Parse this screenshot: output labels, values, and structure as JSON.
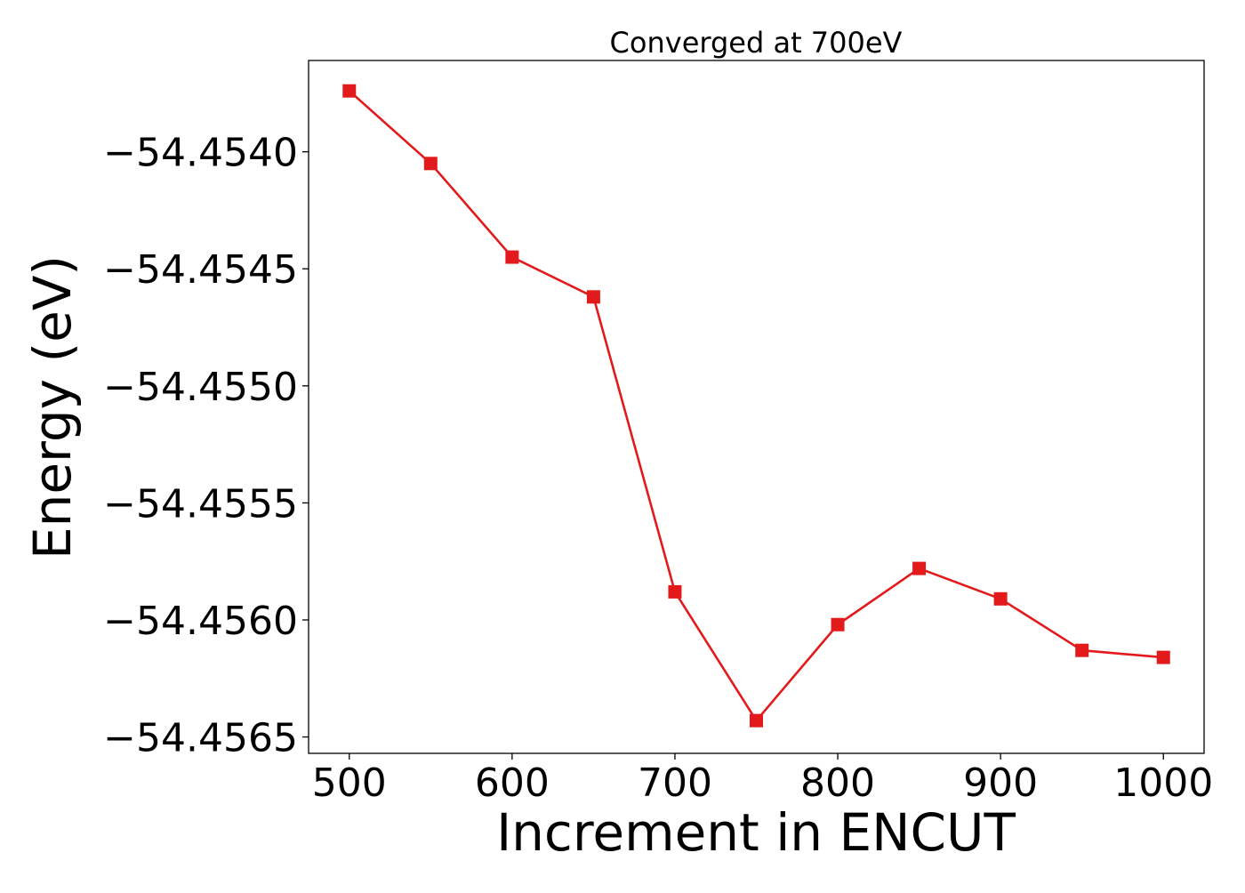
{
  "chart_data": {
    "type": "line",
    "title": "Converged at 700eV",
    "xlabel": "Increment in ENCUT",
    "ylabel": "Energy (eV)",
    "x": [
      500,
      550,
      600,
      650,
      700,
      750,
      800,
      850,
      900,
      950,
      1000
    ],
    "series": [
      {
        "values": [
          -54.45374,
          -54.45405,
          -54.45445,
          -54.45462,
          -54.45588,
          -54.45643,
          -54.45602,
          -54.45578,
          -54.45591,
          -54.45613,
          -54.45616
        ],
        "color": "#e31a1c",
        "marker": "square"
      }
    ],
    "xticks": [
      500,
      600,
      700,
      800,
      900,
      1000
    ],
    "xtick_labels": [
      "500",
      "600",
      "700",
      "800",
      "900",
      "1000"
    ],
    "yticks": [
      -54.454,
      -54.4545,
      -54.455,
      -54.4555,
      -54.456,
      -54.4565
    ],
    "ytick_labels": [
      "−54.4540",
      "−54.4545",
      "−54.4550",
      "−54.4555",
      "−54.4560",
      "−54.4565"
    ],
    "xlim": [
      475,
      1025
    ],
    "ylim": [
      -54.45657,
      -54.45361
    ],
    "grid": false,
    "legend": "none"
  }
}
